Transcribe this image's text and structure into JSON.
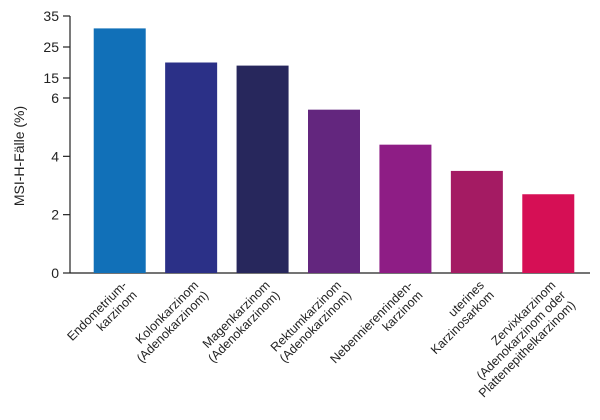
{
  "chart_data": {
    "type": "bar",
    "title": "",
    "xlabel": "",
    "ylabel": "MSI-H-Fälle (%)",
    "axis_break": true,
    "y_ticks_lower": [
      "0",
      "2",
      "4",
      "6"
    ],
    "y_ticks_upper": [
      "15",
      "25",
      "35"
    ],
    "ylim_lower": [
      0,
      6
    ],
    "ylim_upper": [
      15,
      35
    ],
    "grid": false,
    "categories": [
      "Endometrium-\nkarzinom",
      "Kolonkarzinom\n(Adenokarzinom)",
      "Magenkarzinom\n(Adenokarzinom)",
      "Rektumkarzinom\n(Adenokarzinom)",
      "Nebennierenrinden-\nkarzinom",
      "uterines\nKarzinosarkom",
      "Zervixkarzinom\n(Adenokarzinom oder\nPlattenepithelkarzinom)"
    ],
    "values": [
      31,
      20,
      19,
      5.6,
      4.4,
      3.5,
      2.7
    ],
    "colors": [
      "#1170b8",
      "#2b3087",
      "#27275c",
      "#63267e",
      "#8e1d85",
      "#a41b63",
      "#d60f55"
    ]
  }
}
